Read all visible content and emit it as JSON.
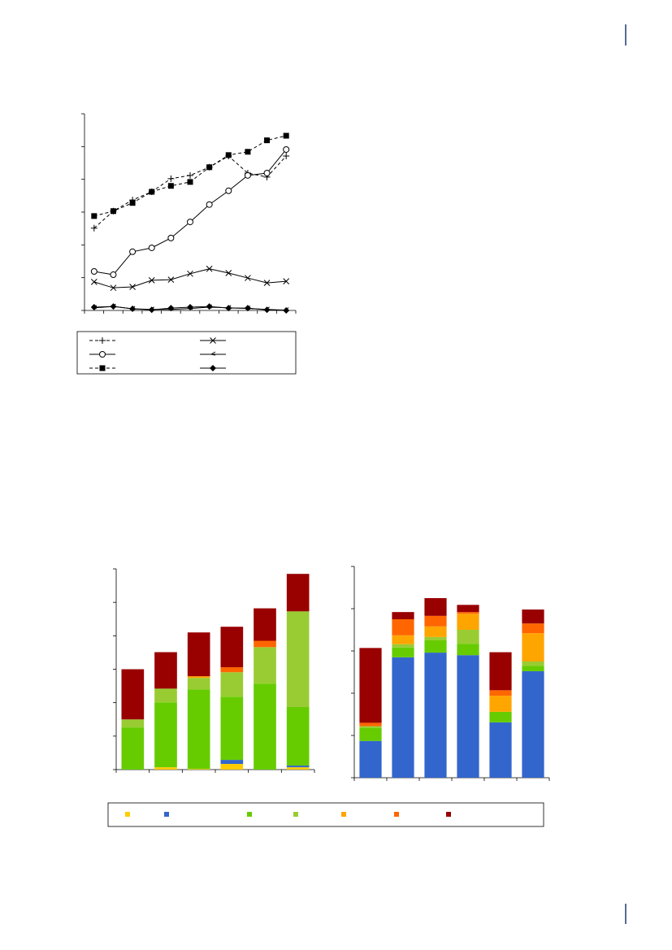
{
  "chart_data": [
    {
      "type": "line",
      "categories": [
        null,
        null,
        null,
        null,
        null,
        null,
        null,
        null,
        null,
        null,
        null
      ],
      "ylim": [
        0,
        6
      ],
      "yticks": [
        0,
        1,
        2,
        3,
        4,
        5,
        6
      ],
      "series": [
        {
          "color": "#000000",
          "marker": "plus",
          "dash": true,
          "values": [
            2.51,
            3.03,
            3.37,
            3.62,
            4.02,
            4.12,
            4.37,
            4.71,
            4.19,
            4.07,
            4.71
          ]
        },
        {
          "color": "#000000",
          "marker": "circle",
          "dash": false,
          "values": [
            1.19,
            1.09,
            1.79,
            1.91,
            2.21,
            2.7,
            3.23,
            3.65,
            4.12,
            4.19,
            4.91
          ]
        },
        {
          "color": "#000000",
          "marker": "square",
          "dash": true,
          "values": [
            2.88,
            3.03,
            3.28,
            3.62,
            3.8,
            3.92,
            4.37,
            4.74,
            4.84,
            5.19,
            5.33
          ]
        },
        {
          "color": "#000000",
          "marker": "x",
          "dash": false,
          "values": [
            0.87,
            0.69,
            0.72,
            0.92,
            0.94,
            1.12,
            1.27,
            1.14,
            0.99,
            0.84,
            0.89
          ]
        },
        {
          "color": "#000000",
          "marker": "hook",
          "dash": false,
          "values": [
            0.08,
            0.12,
            0.05,
            0.03,
            0.03,
            0.06,
            0.1,
            0.08,
            0.06,
            0.03,
            0.01
          ]
        },
        {
          "color": "#000000",
          "marker": "diamond",
          "dash": false,
          "values": [
            0.1,
            0.12,
            0.05,
            0.02,
            0.07,
            0.1,
            0.12,
            0.07,
            0.07,
            0.02,
            0
          ]
        }
      ]
    },
    {
      "type": "bar",
      "stacked": true,
      "categories": [
        null,
        null,
        null,
        null,
        null,
        null
      ],
      "ylim": [
        0,
        6
      ],
      "yticks": [
        0,
        1,
        2,
        3,
        4,
        5,
        6
      ],
      "series": [
        {
          "color": "#ffcc00",
          "values": [
            0,
            0.07,
            0.02,
            0.17,
            0,
            0.07
          ]
        },
        {
          "color": "#3366cc",
          "values": [
            0,
            0,
            0,
            0.12,
            0,
            0.05
          ]
        },
        {
          "color": "#66cc00",
          "values": [
            1.26,
            1.94,
            2.38,
            1.89,
            2.57,
            1.75
          ]
        },
        {
          "color": "#99cc33",
          "values": [
            0.24,
            0.41,
            0.34,
            0.73,
            1.09,
            2.86
          ]
        },
        {
          "color": "#ffa500",
          "values": [
            0,
            0,
            0.05,
            0,
            0,
            0
          ]
        },
        {
          "color": "#ff6600",
          "values": [
            0,
            0,
            0,
            0.15,
            0.19,
            0
          ]
        },
        {
          "color": "#990000",
          "values": [
            1.5,
            1.09,
            1.31,
            1.21,
            0.97,
            1.12
          ]
        }
      ]
    },
    {
      "type": "bar",
      "stacked": true,
      "categories": [
        null,
        null,
        null,
        null,
        null,
        null
      ],
      "ylim": [
        0,
        5
      ],
      "yticks": [
        0,
        1,
        2,
        3,
        4,
        5
      ],
      "series": [
        {
          "color": "#ffcc00",
          "values": [
            0,
            0,
            0,
            0,
            0,
            0
          ]
        },
        {
          "color": "#3366cc",
          "values": [
            0.87,
            2.85,
            2.96,
            2.9,
            1.31,
            2.52
          ]
        },
        {
          "color": "#66cc00",
          "values": [
            0.31,
            0.23,
            0.29,
            0.27,
            0.25,
            0.13
          ]
        },
        {
          "color": "#99cc33",
          "values": [
            0.04,
            0.08,
            0.08,
            0.33,
            0,
            0.1
          ]
        },
        {
          "color": "#ffa500",
          "values": [
            0,
            0.21,
            0.25,
            0.38,
            0.38,
            0.67
          ]
        },
        {
          "color": "#ff6600",
          "values": [
            0.08,
            0.38,
            0.25,
            0.04,
            0.13,
            0.23
          ]
        },
        {
          "color": "#990000",
          "values": [
            1.77,
            0.17,
            0.42,
            0.17,
            0.9,
            0.33
          ]
        }
      ]
    }
  ]
}
